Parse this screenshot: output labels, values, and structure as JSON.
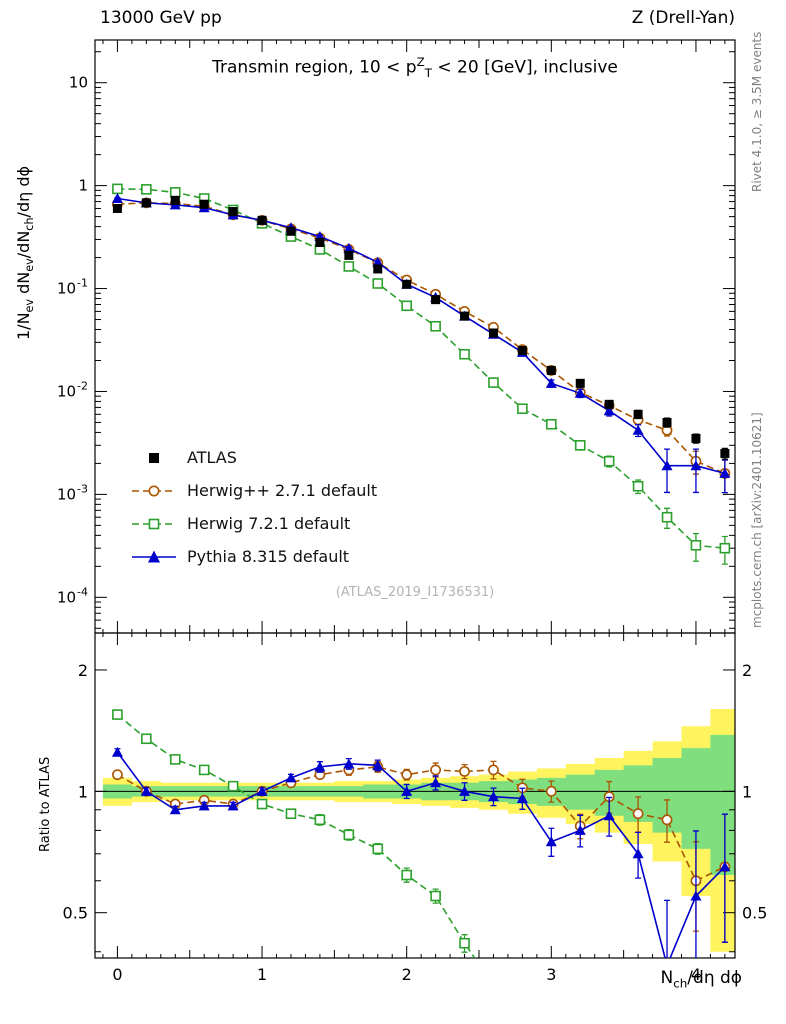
{
  "header": {
    "left": "13000 GeV pp",
    "right": "Z (Drell-Yan)"
  },
  "panel_title": "Transmin region, 10 < p^{Z}_{T} < 20 [GeV], inclusive",
  "watermark": "(ATLAS_2019_I1736531)",
  "side_notes": {
    "top_right": "Rivet 4.1.0, ≥ 3.5M events",
    "bottom_right": "mcplots.cern.ch [arXiv:2401.10621]"
  },
  "axes": {
    "top_ylabel": "1/N_{ev} dN_{ev}/dN_{ch}/dη dϕ",
    "ratio_ylabel": "Ratio to ATLAS",
    "xlabel": "N_{ch}/dη dϕ"
  },
  "legend": [
    {
      "label": "ATLAS",
      "marker": "square-filled",
      "color": "#000000",
      "line": "none"
    },
    {
      "label": "Herwig++ 2.7.1 default",
      "marker": "circle-open",
      "color": "#aa5500",
      "line": "dashed"
    },
    {
      "label": "Herwig 7.2.1 default",
      "marker": "square-open",
      "color": "#2ca02c",
      "line": "dashed"
    },
    {
      "label": "Pythia 8.315 default",
      "marker": "triangle-filled",
      "color": "#0000cc",
      "line": "solid"
    }
  ],
  "colors": {
    "band_outer": "#fff45e",
    "band_inner": "#7fdf7f",
    "frame": "#000000"
  },
  "chart_data": {
    "type": "line",
    "title": "Transmin region, 10 < pT(Z) < 20 [GeV], inclusive",
    "xlabel": "Nch/deta dphi",
    "ylabel": "1/Nev dNev/dNch/deta dphi",
    "xlim": [
      -0.155,
      4.27
    ],
    "ylim_top": [
      4.5e-05,
      26
    ],
    "ylim_ratio": [
      0.386,
      2.47
    ],
    "x_ticks": [
      0,
      1,
      2,
      3,
      4
    ],
    "y_ticks_exp": [
      -4,
      -3,
      -2,
      -1,
      0,
      1
    ],
    "ratio_ticks": [
      0.5,
      1,
      2
    ],
    "ratio_minor_ticks": [
      0.4,
      0.6,
      0.7,
      0.8,
      0.9
    ],
    "x": [
      0.0,
      0.2,
      0.4,
      0.6,
      0.8,
      1.0,
      1.2,
      1.4,
      1.6,
      1.8,
      2.0,
      2.2,
      2.4,
      2.6,
      2.8,
      3.0,
      3.2,
      3.4,
      3.6,
      3.8,
      4.0,
      4.2
    ],
    "atlas": {
      "name": "ATLAS",
      "values": [
        0.6,
        0.68,
        0.72,
        0.66,
        0.56,
        0.46,
        0.36,
        0.28,
        0.21,
        0.155,
        0.11,
        0.078,
        0.054,
        0.037,
        0.025,
        0.016,
        0.012,
        0.0075,
        0.006,
        0.005,
        0.0035,
        0.0025
      ],
      "err_frac": [
        0.04,
        0.04,
        0.04,
        0.04,
        0.04,
        0.04,
        0.04,
        0.04,
        0.04,
        0.04,
        0.05,
        0.05,
        0.05,
        0.06,
        0.06,
        0.07,
        0.08,
        0.08,
        0.09,
        0.1,
        0.1,
        0.12
      ]
    },
    "series": [
      {
        "name": "Herwig++ 2.7.1 default",
        "color": "#aa5500",
        "marker": "circle-open",
        "line": "dashed",
        "values": [
          0.66,
          0.68,
          0.67,
          0.63,
          0.52,
          0.46,
          0.38,
          0.31,
          0.24,
          0.178,
          0.121,
          0.088,
          0.06,
          0.042,
          0.0255,
          0.016,
          0.0098,
          0.0073,
          0.0053,
          0.0042,
          0.0021,
          0.0016
        ],
        "ratio": [
          1.1,
          1.0,
          0.93,
          0.95,
          0.93,
          1.0,
          1.05,
          1.1,
          1.13,
          1.15,
          1.1,
          1.13,
          1.12,
          1.13,
          1.02,
          1.0,
          0.82,
          0.97,
          0.88,
          0.85,
          0.6,
          0.65
        ],
        "err_frac": [
          0.02,
          0.02,
          0.02,
          0.02,
          0.02,
          0.02,
          0.02,
          0.02,
          0.03,
          0.03,
          0.03,
          0.04,
          0.04,
          0.05,
          0.05,
          0.06,
          0.07,
          0.09,
          0.1,
          0.12,
          0.25,
          0.35
        ]
      },
      {
        "name": "Herwig 7.2.1 default",
        "color": "#2ca02c",
        "marker": "square-open",
        "line": "dashed",
        "values": [
          0.93,
          0.92,
          0.86,
          0.75,
          0.58,
          0.43,
          0.32,
          0.24,
          0.164,
          0.112,
          0.068,
          0.043,
          0.023,
          0.0122,
          0.0068,
          0.0048,
          0.003,
          0.0021,
          0.0012,
          0.0006,
          0.00032,
          0.0003
        ],
        "ratio": [
          1.55,
          1.35,
          1.2,
          1.13,
          1.03,
          0.93,
          0.88,
          0.85,
          0.78,
          0.72,
          0.62,
          0.55,
          0.42,
          0.33,
          0.27,
          0.3,
          0.25,
          0.28,
          0.2,
          0.12,
          0.09,
          0.12
        ],
        "err_frac": [
          0.02,
          0.02,
          0.02,
          0.02,
          0.02,
          0.02,
          0.02,
          0.03,
          0.03,
          0.03,
          0.04,
          0.04,
          0.05,
          0.06,
          0.07,
          0.08,
          0.1,
          0.12,
          0.15,
          0.22,
          0.3,
          0.3
        ]
      },
      {
        "name": "Pythia 8.315 default",
        "color": "#0000cc",
        "marker": "triangle-filled",
        "line": "solid",
        "values": [
          0.75,
          0.68,
          0.65,
          0.61,
          0.52,
          0.46,
          0.39,
          0.32,
          0.246,
          0.18,
          0.11,
          0.082,
          0.054,
          0.036,
          0.024,
          0.012,
          0.0096,
          0.0065,
          0.0042,
          0.0019,
          0.0019,
          0.0016
        ],
        "ratio": [
          1.25,
          1.0,
          0.9,
          0.92,
          0.92,
          1.0,
          1.08,
          1.15,
          1.17,
          1.16,
          1.0,
          1.05,
          1.0,
          0.97,
          0.96,
          0.75,
          0.8,
          0.87,
          0.7,
          0.37,
          0.55,
          0.65
        ],
        "err_frac": [
          0.02,
          0.02,
          0.02,
          0.02,
          0.02,
          0.02,
          0.02,
          0.03,
          0.03,
          0.03,
          0.04,
          0.04,
          0.05,
          0.05,
          0.06,
          0.08,
          0.09,
          0.11,
          0.13,
          0.45,
          0.45,
          0.35
        ]
      }
    ],
    "bands": {
      "outer_halfwidth": [
        0.08,
        0.06,
        0.05,
        0.05,
        0.05,
        0.05,
        0.05,
        0.05,
        0.06,
        0.06,
        0.07,
        0.08,
        0.09,
        0.1,
        0.12,
        0.14,
        0.17,
        0.21,
        0.26,
        0.33,
        0.45,
        0.6
      ],
      "inner_halfwidth": [
        0.04,
        0.03,
        0.03,
        0.03,
        0.03,
        0.03,
        0.03,
        0.03,
        0.03,
        0.04,
        0.04,
        0.05,
        0.05,
        0.06,
        0.07,
        0.08,
        0.1,
        0.13,
        0.16,
        0.21,
        0.28,
        0.38
      ]
    }
  }
}
